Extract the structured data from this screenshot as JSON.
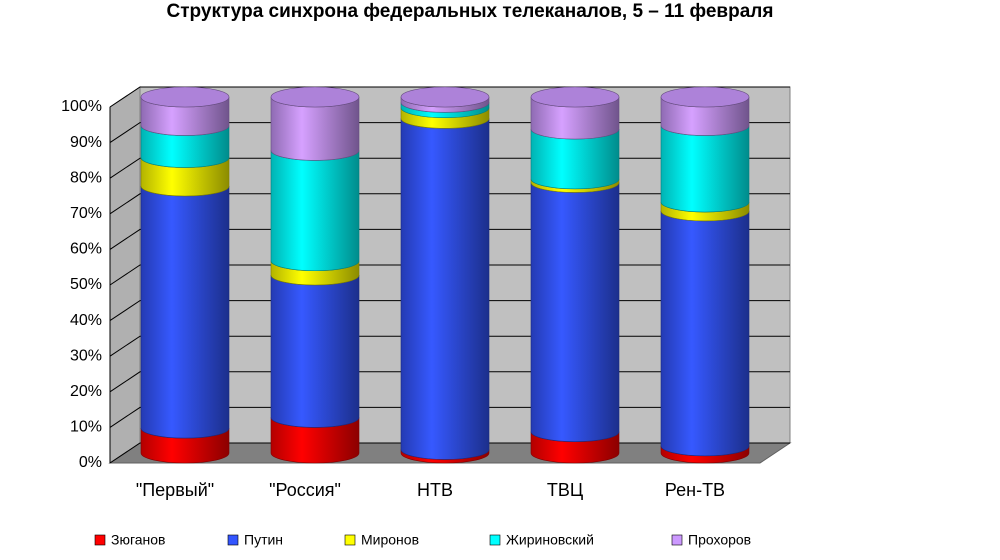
{
  "chart_data": {
    "type": "bar",
    "title": "Структура синхрона федеральных телеканалов, 5 – 11 февраля",
    "categories": [
      "\"Первый\"",
      "\"Россия\"",
      "НТВ",
      "ТВЦ",
      "Рен-ТВ"
    ],
    "series": [
      {
        "name": "Зюганов",
        "color": "#ff0000",
        "values": [
          7,
          10,
          1,
          6,
          2
        ]
      },
      {
        "name": "Путин",
        "color": "#3355ff",
        "values": [
          68,
          40,
          93,
          70,
          66
        ]
      },
      {
        "name": "Миронов",
        "color": "#ffff00",
        "values": [
          8,
          4,
          3,
          1,
          2.5
        ]
      },
      {
        "name": "Жириновский",
        "color": "#00ffff",
        "values": [
          9,
          31,
          1.5,
          14,
          21.5
        ]
      },
      {
        "name": "Прохоров",
        "color": "#cc99ff",
        "values": [
          8,
          15,
          1.5,
          9,
          8
        ]
      }
    ],
    "stacked": true,
    "ylim": [
      0,
      100
    ],
    "yticks": [
      {
        "value": 0,
        "label": "0%"
      },
      {
        "value": 10,
        "label": "10%"
      },
      {
        "value": 20,
        "label": "20%"
      },
      {
        "value": 30,
        "label": "30%"
      },
      {
        "value": 40,
        "label": "40%"
      },
      {
        "value": 50,
        "label": "50%"
      },
      {
        "value": 60,
        "label": "60%"
      },
      {
        "value": 70,
        "label": "70%"
      },
      {
        "value": 80,
        "label": "80%"
      },
      {
        "value": 90,
        "label": "90%"
      },
      {
        "value": 100,
        "label": "100%"
      }
    ],
    "grid": true,
    "legend": "bottom"
  }
}
